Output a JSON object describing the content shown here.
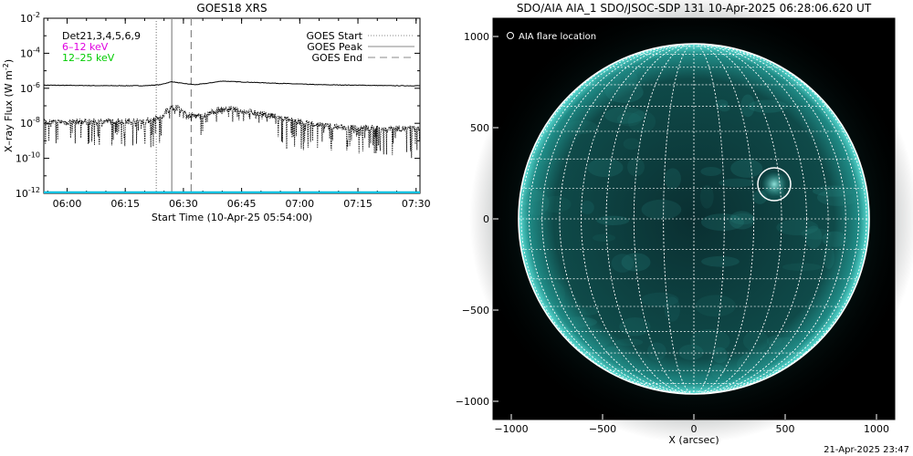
{
  "footer_timestamp": "21-Apr-2025 23:47",
  "chart_data": [
    {
      "type": "line",
      "title": "GOES18 XRS",
      "xlabel": "Start Time (10-Apr-25 05:54:00)",
      "ylabel": "X-ray Flux (W m⁻²)",
      "ylabel_parts": {
        "main": "X–ray Flux (W m",
        "sup": "-2",
        "end": ")"
      },
      "log_y": true,
      "xlim": [
        "05:54",
        "07:31"
      ],
      "ylim": [
        "1e-12",
        "1e-2"
      ],
      "x_ticks": [
        "06:00",
        "06:15",
        "06:30",
        "06:45",
        "07:00",
        "07:15",
        "07:30"
      ],
      "y_ticks": [
        {
          "base": "10",
          "exp": "-2",
          "value": 0.01
        },
        {
          "base": "10",
          "exp": "-4",
          "value": 0.0001
        },
        {
          "base": "10",
          "exp": "-6",
          "value": 1e-06
        },
        {
          "base": "10",
          "exp": "-8",
          "value": 1e-08
        },
        {
          "base": "10",
          "exp": "-10",
          "value": 1e-10
        },
        {
          "base": "10",
          "exp": "-12",
          "value": 1e-12
        }
      ],
      "detector_label": "Det21,3,4,5,6,9",
      "channel_labels": [
        {
          "text": "6–12 keV",
          "color": "#e000e0"
        },
        {
          "text": "12–25 keV",
          "color": "#00cc00"
        }
      ],
      "legend": [
        "GOES Start",
        "GOES Peak",
        "GOES End"
      ],
      "markers": [
        {
          "name": "GOES Start",
          "time": "06:23",
          "style": "dotted"
        },
        {
          "name": "GOES Peak",
          "time": "06:27",
          "style": "solid"
        },
        {
          "name": "GOES End",
          "time": "06:32",
          "style": "dashed"
        }
      ],
      "series": [
        {
          "color": "#000000",
          "x": [
            "05:54",
            "06:10",
            "06:20",
            "06:24",
            "06:27",
            "06:29",
            "06:33",
            "06:36",
            "06:40",
            "06:45",
            "06:55",
            "07:05",
            "07:15",
            "07:25",
            "07:31"
          ],
          "values": [
            1.5e-06,
            1.4e-06,
            1.4e-06,
            1.6e-06,
            2.4e-06,
            2e-06,
            1.6e-06,
            1.9e-06,
            2.6e-06,
            2.3e-06,
            1.9e-06,
            1.6e-06,
            1.5e-06,
            1.4e-06,
            1.4e-06
          ]
        },
        {
          "color": "#000000",
          "x": [
            "05:54",
            "06:10",
            "06:20",
            "06:24",
            "06:26",
            "06:28",
            "06:31",
            "06:35",
            "06:38",
            "06:41",
            "06:50",
            "07:00",
            "07:10",
            "07:20",
            "07:31"
          ],
          "values": [
            1.2e-08,
            1.3e-08,
            1.3e-08,
            2e-08,
            6e-08,
            9e-08,
            3e-08,
            2.4e-08,
            5e-08,
            7e-08,
            3.5e-08,
            1.2e-08,
            6e-09,
            5e-09,
            5e-09
          ]
        },
        {
          "color": "#00c0e0",
          "x": [
            "05:54",
            "07:31"
          ],
          "values": [
            1e-12,
            1e-12
          ]
        }
      ]
    },
    {
      "type": "image",
      "title": "SDO/AIA AIA_1 SDO/JSOC-SDP 131 10-Apr-2025 06:28:06.620 UT",
      "xlabel": "X (arcsec)",
      "xlim": [
        -1100,
        1100
      ],
      "ylim": [
        -1100,
        1100
      ],
      "x_ticks": [
        "−1000",
        "−500",
        "0",
        "500",
        "1000"
      ],
      "y_ticks": [
        "1000",
        "500",
        "0",
        "−500",
        "−1000"
      ],
      "legend": [
        "AIA flare location"
      ],
      "flare_location": {
        "x": 440,
        "y": 190,
        "radius": 90
      },
      "solar_radius_arcsec": 960,
      "grid_spacing_deg": 10,
      "disk_color": "#0b3d3d",
      "limb_color": "#3fc9c4"
    }
  ]
}
